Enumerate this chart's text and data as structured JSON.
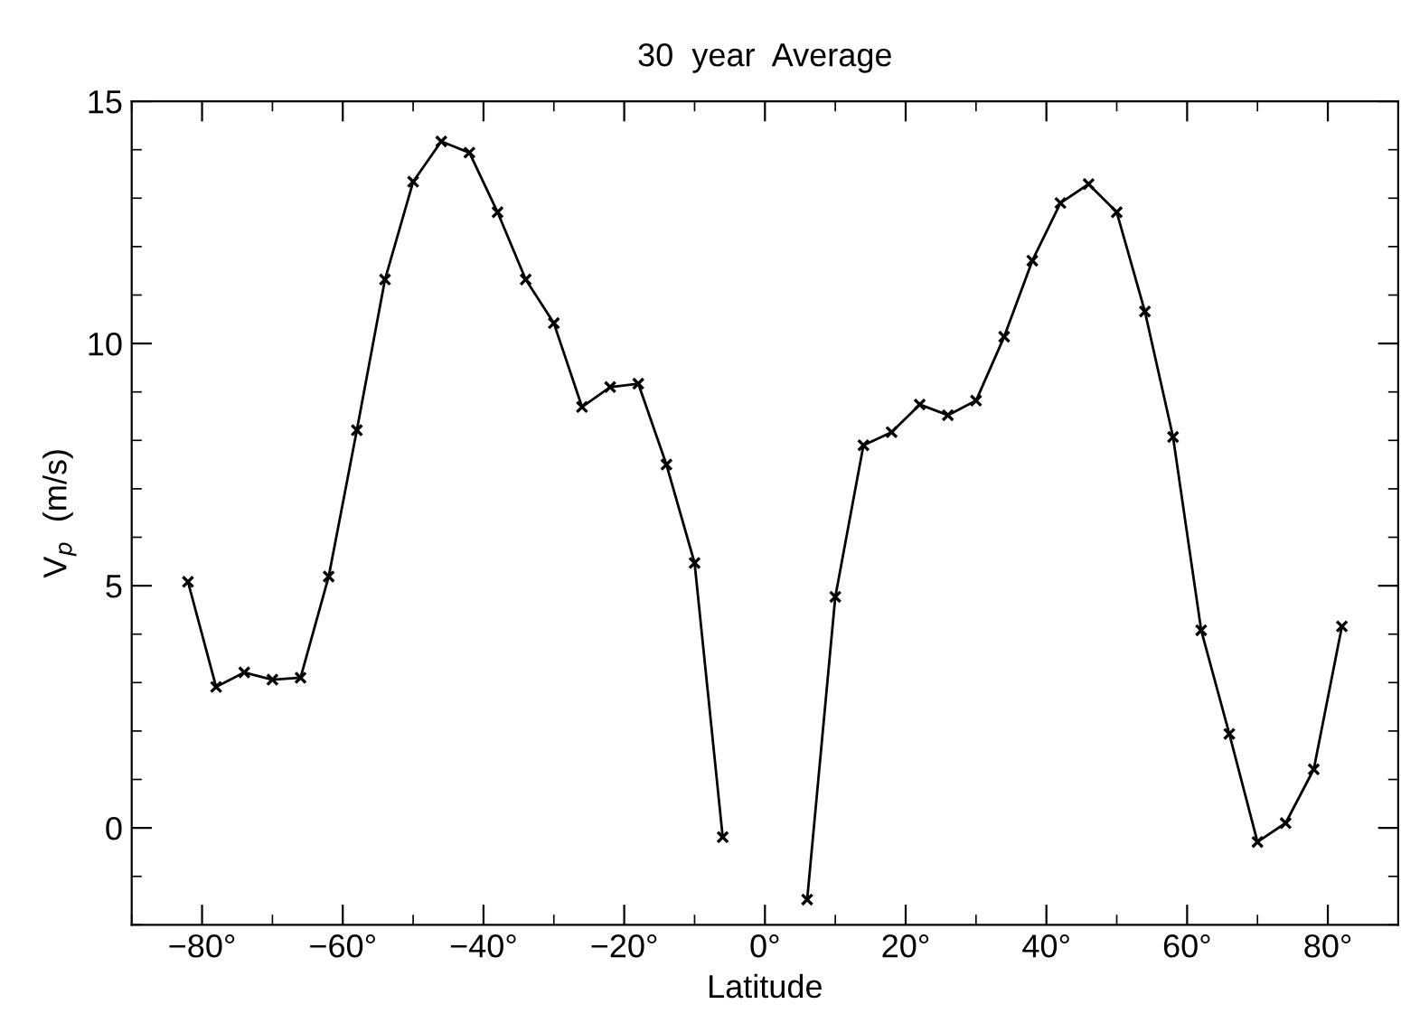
{
  "chart_data": {
    "type": "line",
    "title": "30  year  Average",
    "xlabel": "Latitude",
    "ylabel": "V$_{p}$  (m/s)",
    "x": [
      -82,
      -78,
      -74,
      -70,
      -66,
      -62,
      -58,
      -54,
      -50,
      -46,
      -42,
      -38,
      -34,
      -30,
      -26,
      -22,
      -18,
      -14,
      -10,
      -6,
      -2,
      2,
      6,
      10,
      14,
      18,
      22,
      26,
      30,
      34,
      38,
      42,
      46,
      50,
      54,
      58,
      62,
      66,
      70,
      74,
      78,
      82
    ],
    "series": [
      {
        "color": "#000000",
        "values": [
          5.08,
          2.91,
          3.21,
          3.06,
          3.1,
          5.19,
          8.21,
          11.32,
          13.34,
          14.17,
          13.94,
          12.71,
          11.32,
          10.42,
          8.69,
          9.1,
          9.17,
          7.5,
          5.47,
          -0.19,
          null,
          null,
          -1.48,
          4.77,
          7.9,
          8.17,
          8.74,
          8.52,
          8.82,
          10.14,
          11.71,
          12.9,
          13.29,
          12.71,
          10.66,
          8.07,
          4.08,
          1.94,
          -0.29,
          0.1,
          1.21,
          4.16
        ]
      }
    ],
    "marker": "cross",
    "line_style": "solid",
    "grid": false,
    "legend": false,
    "xlim": [
      -90,
      90
    ],
    "ylim": [
      -2,
      15
    ],
    "xticks": [
      {
        "value": -80,
        "label": "−80°"
      },
      {
        "value": -60,
        "label": "−60°"
      },
      {
        "value": -40,
        "label": "−40°"
      },
      {
        "value": -20,
        "label": "−20°"
      },
      {
        "value": 0,
        "label": "0°"
      },
      {
        "value": 20,
        "label": "20°"
      },
      {
        "value": 40,
        "label": "40°"
      },
      {
        "value": 60,
        "label": "60°"
      },
      {
        "value": 80,
        "label": "80°"
      }
    ],
    "yticks": [
      0,
      5,
      10,
      15
    ]
  }
}
